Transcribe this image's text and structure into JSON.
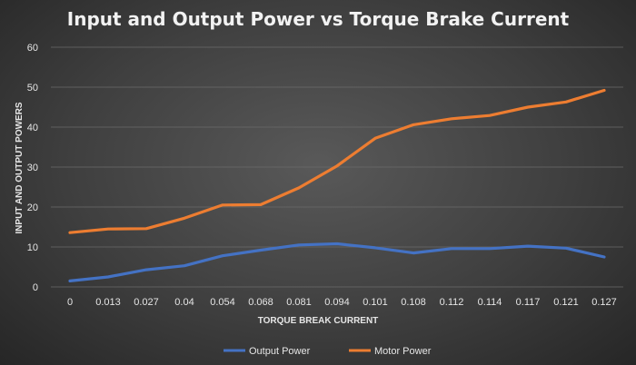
{
  "chart_data": {
    "type": "line",
    "title": "Input and Output Power vs Torque Brake Current",
    "xlabel": "TORQUE BREAK CURRENT",
    "ylabel": "INPUT AND OUTPUT POWERS",
    "categories": [
      "0",
      "0.013",
      "0.027",
      "0.04",
      "0.054",
      "0.068",
      "0.081",
      "0.094",
      "0.101",
      "0.108",
      "0.112",
      "0.114",
      "0.117",
      "0.121",
      "0.127"
    ],
    "ylim": [
      0,
      60
    ],
    "yticks": [
      0,
      10,
      20,
      30,
      40,
      50,
      60
    ],
    "grid": true,
    "legend_position": "bottom",
    "series": [
      {
        "name": "Output Power",
        "color": "#4472c4",
        "values": [
          1.5,
          2.5,
          4.3,
          5.3,
          7.8,
          9.2,
          10.5,
          10.8,
          9.8,
          8.5,
          9.6,
          9.6,
          10.2,
          9.7,
          7.5
        ]
      },
      {
        "name": "Motor Power",
        "color": "#ed7d31",
        "values": [
          13.6,
          14.5,
          14.6,
          17.2,
          20.5,
          20.6,
          24.8,
          30.3,
          37.2,
          40.6,
          42.1,
          42.9,
          45.0,
          46.3,
          49.2
        ]
      }
    ]
  }
}
